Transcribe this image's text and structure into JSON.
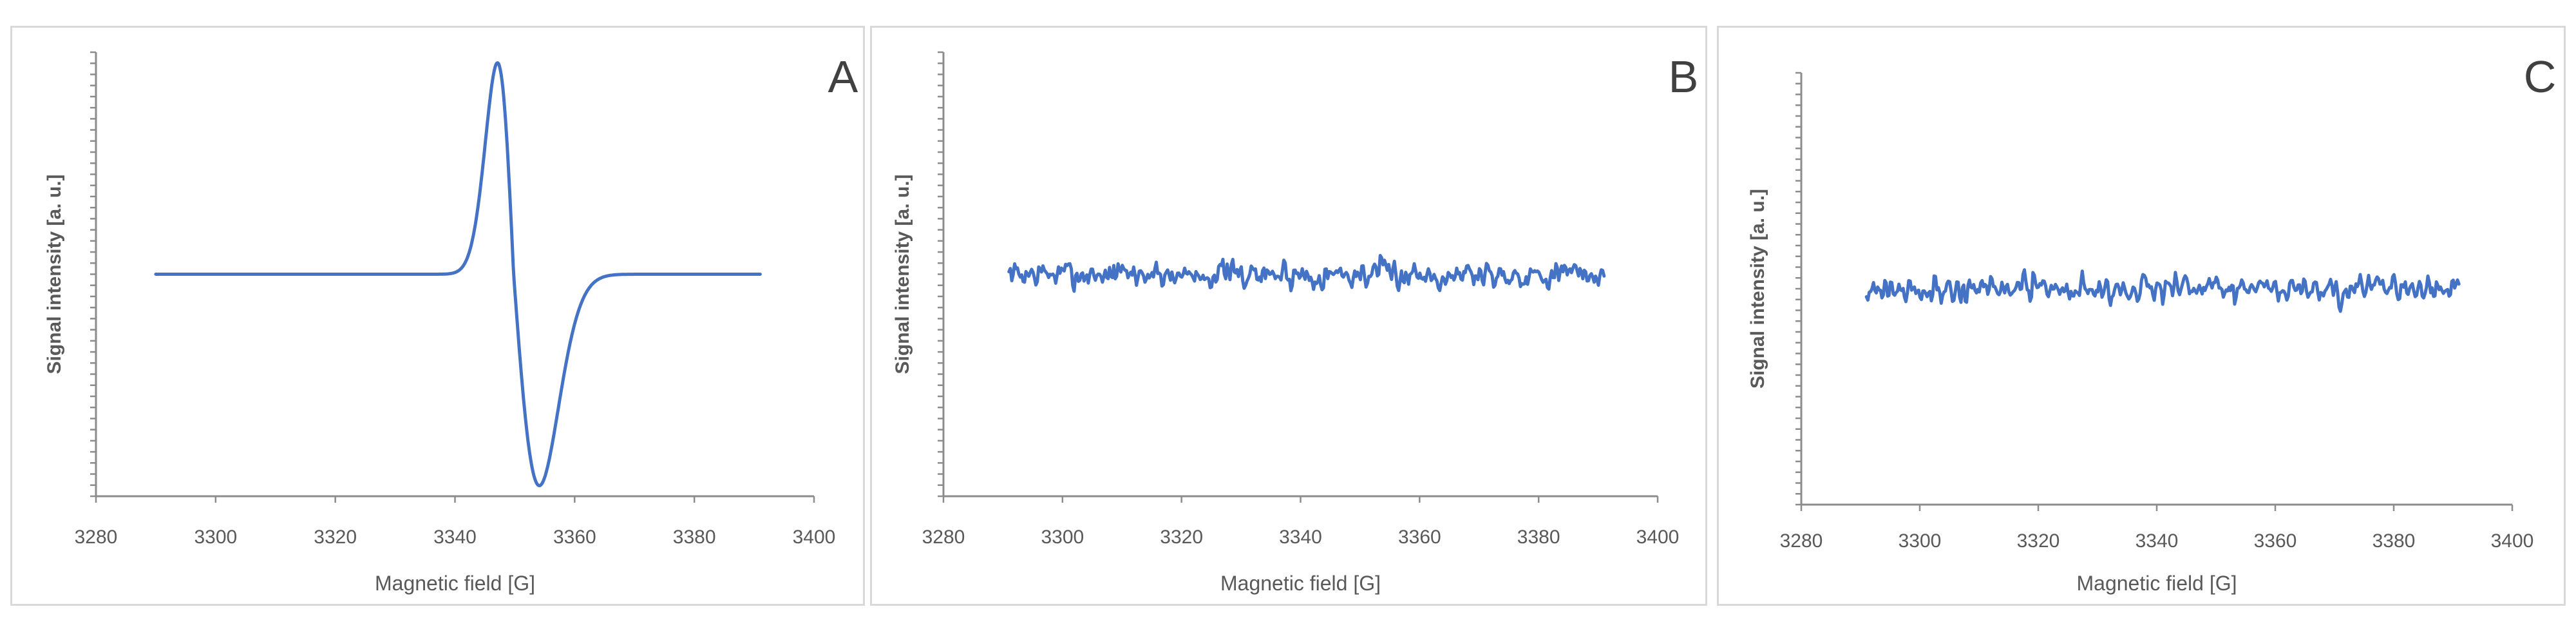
{
  "colors": {
    "series": "#4472c4",
    "axis": "#8c8c8c",
    "text": "#595959",
    "border": "#d9d9d9"
  },
  "chart_data": [
    {
      "type": "line",
      "panel_label": "A",
      "xlabel": "Magnetic field [G]",
      "ylabel": "Signal intensity  [a. u.]",
      "xlim": [
        3280,
        3400
      ],
      "xticks": [
        3280,
        3300,
        3320,
        3340,
        3360,
        3380,
        3400
      ],
      "ylim": [
        -1.05,
        1.05
      ],
      "ytick_labels": false,
      "grid": false,
      "signal": {
        "kind": "derivative",
        "x_range": [
          3290,
          3391
        ],
        "center": 3349.8,
        "width": 2.7,
        "tail": 4.3
      }
    },
    {
      "type": "line",
      "panel_label": "B",
      "xlabel": "Magnetic field  [G]",
      "ylabel": "Signal intensity  [a. u.]",
      "xlim": [
        3280,
        3400
      ],
      "xticks": [
        3280,
        3300,
        3320,
        3340,
        3360,
        3380,
        3400
      ],
      "ylim": [
        -1.05,
        1.05
      ],
      "ytick_labels": false,
      "grid": false,
      "signal": {
        "kind": "noise",
        "x_range": [
          3291,
          3391
        ],
        "baseline": 0.0,
        "amplitude": 0.045,
        "seed": 7
      }
    },
    {
      "type": "line",
      "panel_label": "C",
      "xlabel": "Magnetic field [G]",
      "ylabel": "Signal intensity  [a. u.]",
      "xlim": [
        3280,
        3400
      ],
      "xticks": [
        3280,
        3300,
        3320,
        3340,
        3360,
        3380,
        3400
      ],
      "ylim": [
        -1.05,
        1.05
      ],
      "ytick_labels": false,
      "grid": false,
      "signal": {
        "kind": "noise",
        "x_range": [
          3291,
          3391
        ],
        "baseline": 0.0,
        "amplitude": 0.045,
        "seed": 21
      }
    }
  ]
}
